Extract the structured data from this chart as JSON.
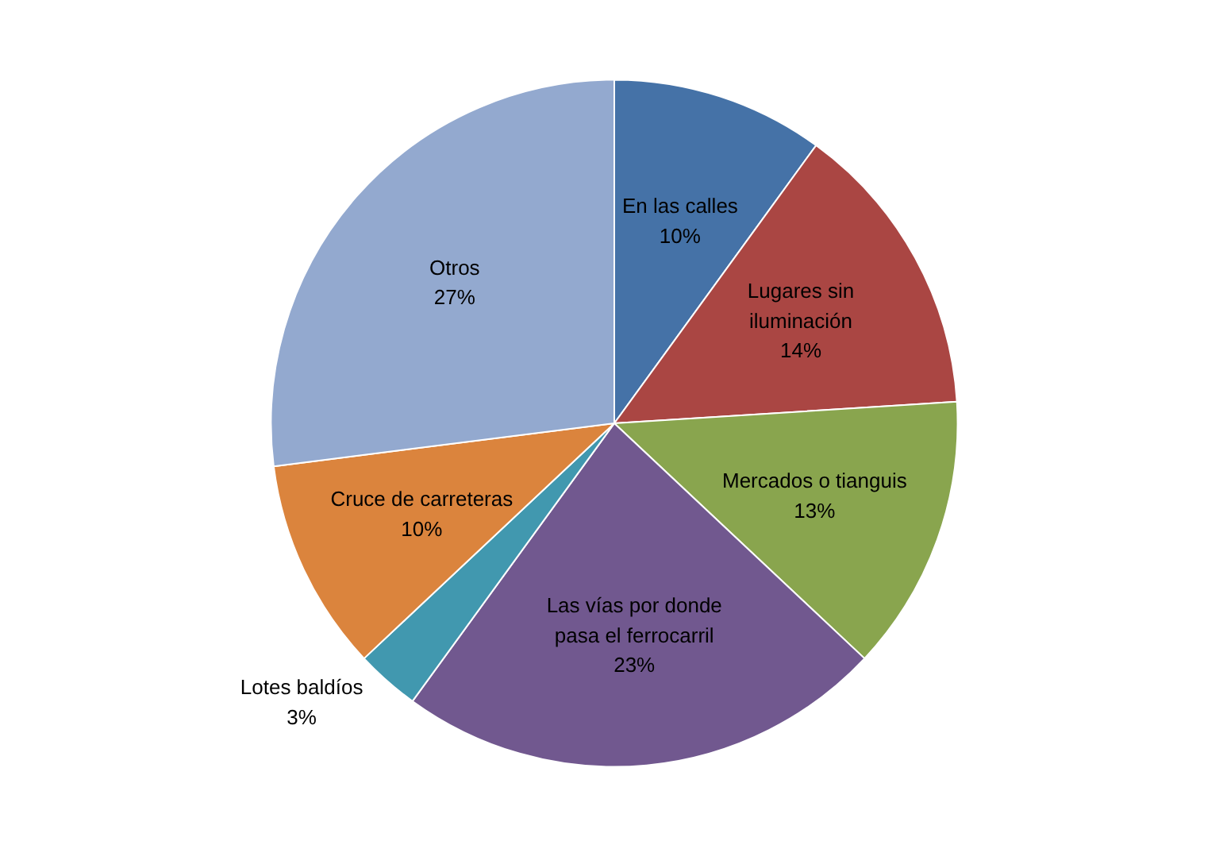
{
  "chart_data": {
    "type": "pie",
    "categories": [
      "En las calles",
      "Lugares sin\niluminación",
      "Mercados o tianguis",
      "Las vías por donde\npasa el ferrocarril",
      "Lotes baldíos",
      "Cruce de carreteras",
      "Otros"
    ],
    "values": [
      10,
      14,
      13,
      23,
      3,
      10,
      27
    ],
    "value_labels": [
      "10%",
      "14%",
      "13%",
      "23%",
      "3%",
      "10%",
      "27%"
    ],
    "colors": [
      "#4572a7",
      "#aa4643",
      "#89a54e",
      "#71588f",
      "#4198af",
      "#db843d",
      "#93a9cf"
    ],
    "legend": false
  }
}
